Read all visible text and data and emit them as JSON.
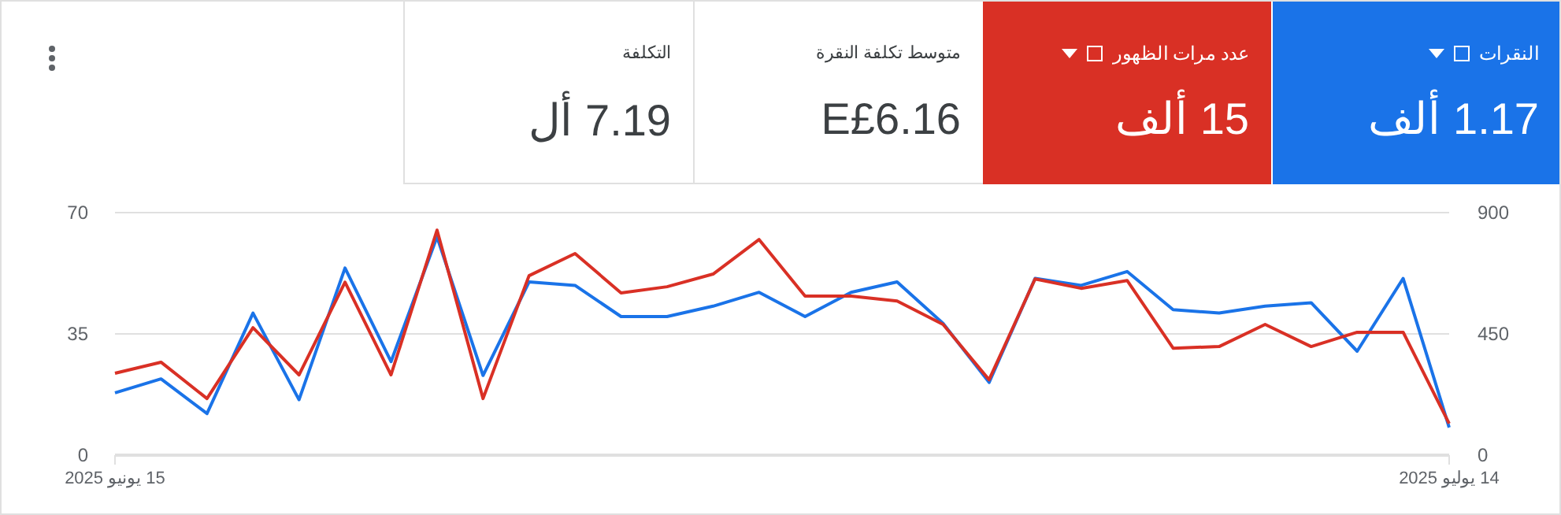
{
  "chart_data": {
    "type": "line",
    "x": [
      "2025-06-15",
      "2025-06-16",
      "2025-06-17",
      "2025-06-18",
      "2025-06-19",
      "2025-06-20",
      "2025-06-21",
      "2025-06-22",
      "2025-06-23",
      "2025-06-24",
      "2025-06-25",
      "2025-06-26",
      "2025-06-27",
      "2025-06-28",
      "2025-06-29",
      "2025-06-30",
      "2025-07-01",
      "2025-07-02",
      "2025-07-03",
      "2025-07-04",
      "2025-07-05",
      "2025-07-06",
      "2025-07-07",
      "2025-07-08",
      "2025-07-09",
      "2025-07-10",
      "2025-07-11",
      "2025-07-12",
      "2025-07-13",
      "2025-07-14"
    ],
    "series": [
      {
        "name": "النقرات",
        "color": "#1a73e8",
        "values": [
          18,
          22,
          12,
          41,
          16,
          54,
          27,
          63,
          23,
          50,
          49,
          40,
          40,
          43,
          47,
          40,
          47,
          50,
          38,
          21,
          51,
          49,
          53,
          42,
          41,
          43,
          44,
          30,
          51,
          8
        ]
      },
      {
        "name": "عدد مرات الظهور",
        "color": "#d93025",
        "axis": "y2",
        "values": [
          304,
          345,
          210,
          473,
          298,
          642,
          298,
          835,
          210,
          666,
          748,
          602,
          625,
          672,
          800,
          590,
          590,
          572,
          485,
          280,
          654,
          619,
          648,
          397,
          403,
          485,
          403,
          456,
          456,
          117
        ]
      }
    ],
    "xlim": [
      "2025-06-15",
      "2025-07-14"
    ],
    "xticks": [
      {
        "value": "2025-06-15",
        "label": "15 يونيو 2025"
      },
      {
        "value": "2025-07-14",
        "label": "14 يوليو 2025"
      }
    ],
    "ylim": [
      0,
      70
    ],
    "yticks": [
      0,
      35,
      70
    ],
    "y2lim": [
      0,
      900
    ],
    "y2ticks": [
      0,
      450,
      900
    ],
    "grid": "y",
    "legend": "top",
    "marker": "none",
    "line_style": "solid",
    "annotations": [
      "1.17 ألف",
      "15 ألف",
      "متوسط تكلفة النقرة",
      "E£6.16",
      "التكلفة",
      "7.19 أل"
    ]
  }
}
